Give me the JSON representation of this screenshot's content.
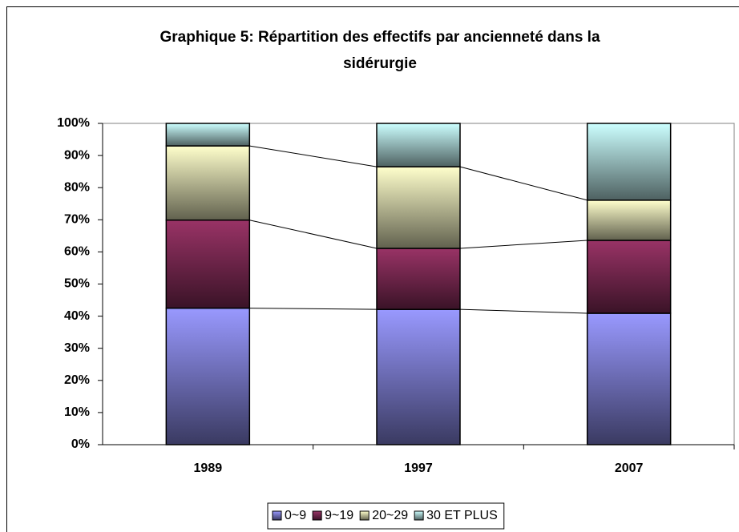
{
  "chart_data": {
    "type": "stacked_bar",
    "title": "Graphique 5: Répartition des effectifs par ancienneté dans la sidérurgie",
    "categories": [
      "1989",
      "1997",
      "2007"
    ],
    "series": [
      {
        "name": "0~9",
        "color": "#9999ff",
        "values": [
          42.5,
          42.1,
          40.9
        ]
      },
      {
        "name": "9~19",
        "color": "#993366",
        "values": [
          27.4,
          19.0,
          22.7
        ]
      },
      {
        "name": "20~29",
        "color": "#ffffcc",
        "values": [
          23.1,
          25.4,
          12.5
        ]
      },
      {
        "name": "30 ET PLUS",
        "color": "#ccffff",
        "values": [
          7.0,
          13.5,
          23.9
        ]
      }
    ],
    "ylim": [
      0,
      100
    ],
    "yticks": [
      {
        "value": 0,
        "label": "0%"
      },
      {
        "value": 10,
        "label": "10%"
      },
      {
        "value": 20,
        "label": "20%"
      },
      {
        "value": 30,
        "label": "30%"
      },
      {
        "value": 40,
        "label": "40%"
      },
      {
        "value": 50,
        "label": "50%"
      },
      {
        "value": 60,
        "label": "60%"
      },
      {
        "value": 70,
        "label": "70%"
      },
      {
        "value": 80,
        "label": "80%"
      },
      {
        "value": 90,
        "label": "90%"
      },
      {
        "value": 100,
        "label": "100%"
      }
    ],
    "legend": "bottom"
  }
}
